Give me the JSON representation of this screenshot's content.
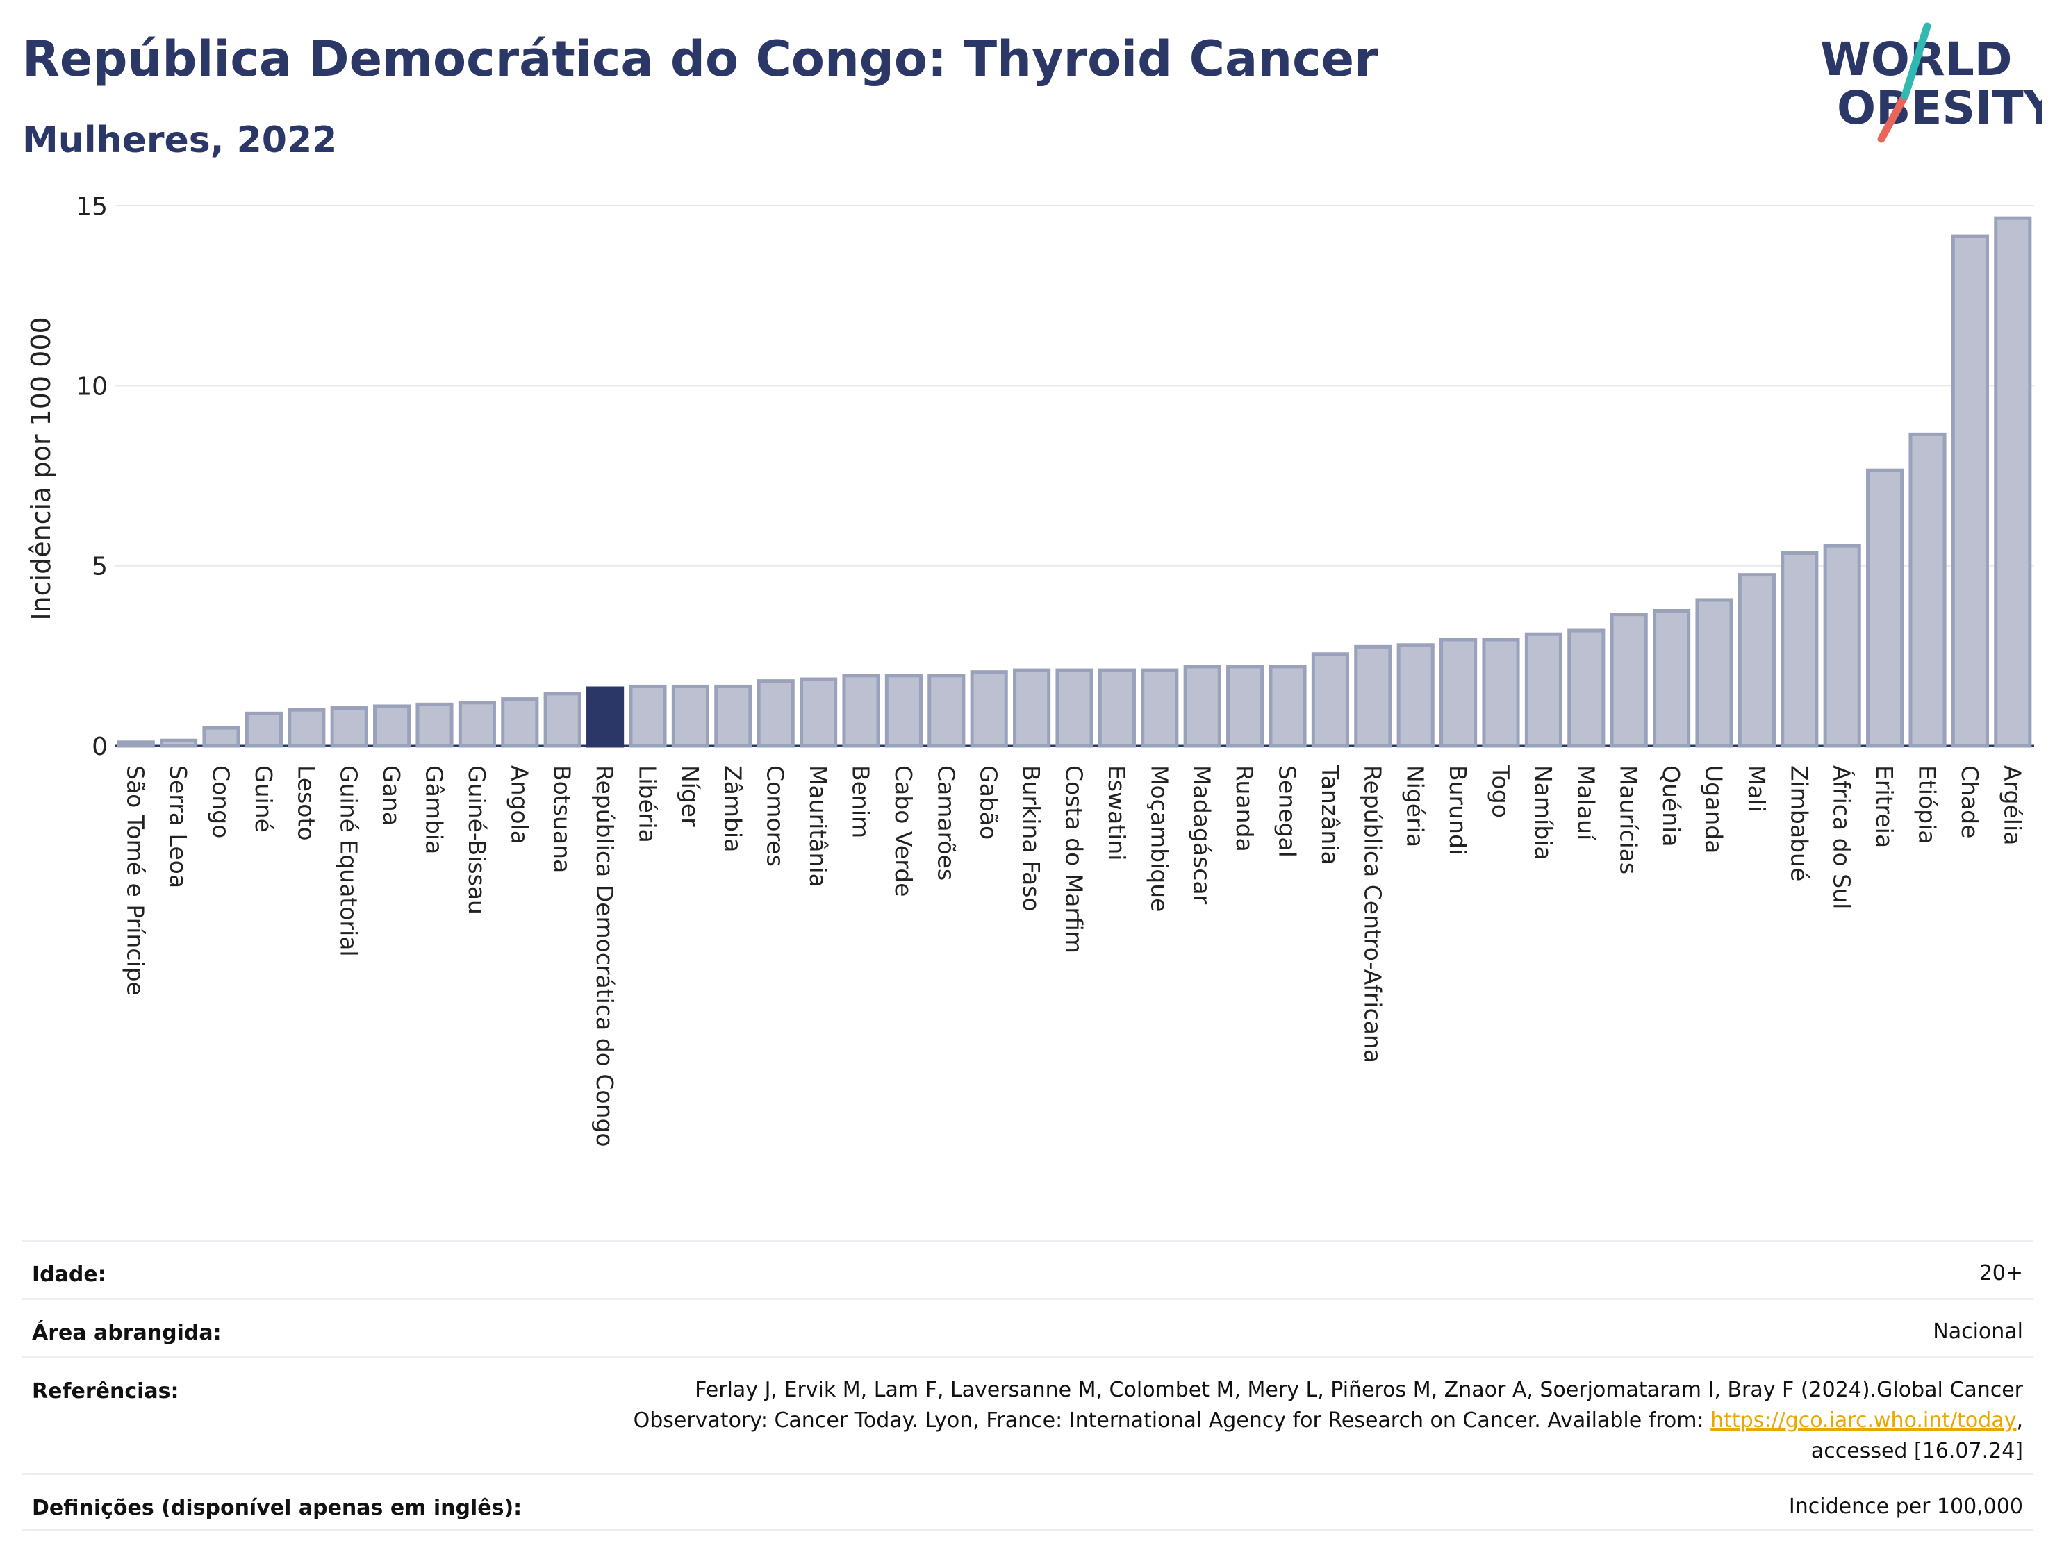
{
  "header": {
    "title": "República Democrática do Congo: Thyroid Cancer",
    "subtitle": "Mulheres, 2022"
  },
  "logo": {
    "line1": "WORLD",
    "line2": "OBESITY",
    "icon": "world-obesity-logo"
  },
  "colors": {
    "bar": "#bcc0d0",
    "bar_edge": "#9aa1bb",
    "highlight": "#2b3766",
    "title": "#2b3766",
    "link": "#e9a800"
  },
  "chart_data": {
    "type": "bar",
    "ylabel": "Incidência por 100 000",
    "ylim": [
      0,
      15
    ],
    "yticks": [
      0,
      5,
      10,
      15
    ],
    "grid": true,
    "highlight": "República Democrática do Congo",
    "categories": [
      "São Tomé e Príncipe",
      "Serra Leoa",
      "Congo",
      "Guiné",
      "Lesoto",
      "Guiné Equatorial",
      "Gana",
      "Gâmbia",
      "Guiné-Bissau",
      "Angola",
      "Botsuana",
      "República Democrática do Congo",
      "Libéria",
      "Níger",
      "Zâmbia",
      "Comores",
      "Mauritânia",
      "Benim",
      "Cabo Verde",
      "Camarões",
      "Gabão",
      "Burkina Faso",
      "Costa do Marfim",
      "Eswatini",
      "Moçambique",
      "Madagáscar",
      "Ruanda",
      "Senegal",
      "Tanzânia",
      "República Centro-Africana",
      "Nigéria",
      "Burundi",
      "Togo",
      "Namíbia",
      "Malauí",
      "Maurícias",
      "Quénia",
      "Uganda",
      "Mali",
      "Zimbabué",
      "África do Sul",
      "Eritreia",
      "Etiópia",
      "Chade",
      "Argélia"
    ],
    "values": [
      0.1,
      0.15,
      0.5,
      0.9,
      1.0,
      1.05,
      1.1,
      1.15,
      1.2,
      1.3,
      1.45,
      1.6,
      1.65,
      1.65,
      1.65,
      1.8,
      1.85,
      1.95,
      1.95,
      1.95,
      2.05,
      2.1,
      2.1,
      2.1,
      2.1,
      2.2,
      2.2,
      2.2,
      2.55,
      2.75,
      2.8,
      2.95,
      2.95,
      3.1,
      3.2,
      3.65,
      3.75,
      4.05,
      4.75,
      5.35,
      5.55,
      7.65,
      8.65,
      14.15,
      14.65
    ]
  },
  "info": {
    "age_label": "Idade:",
    "age_value": "20+",
    "area_label": "Área abrangida:",
    "area_value": "Nacional",
    "ref_label": "Referências:",
    "ref_text_1": "Ferlay J, Ervik M, Lam F, Laversanne M, Colombet M, Mery L, Piñeros M, Znaor A, Soerjomataram I, Bray F (2024).Global Cancer",
    "ref_text_2": "Observatory: Cancer Today. Lyon, France: International Agency for Research on Cancer. Available from: ",
    "ref_link": "https://gco.iarc.who.int/today",
    "ref_text_3": ",",
    "ref_text_4": "accessed [16.07.24]",
    "def_label": "Definições (disponível apenas em inglês):",
    "def_value": "Incidence per 100,000"
  }
}
